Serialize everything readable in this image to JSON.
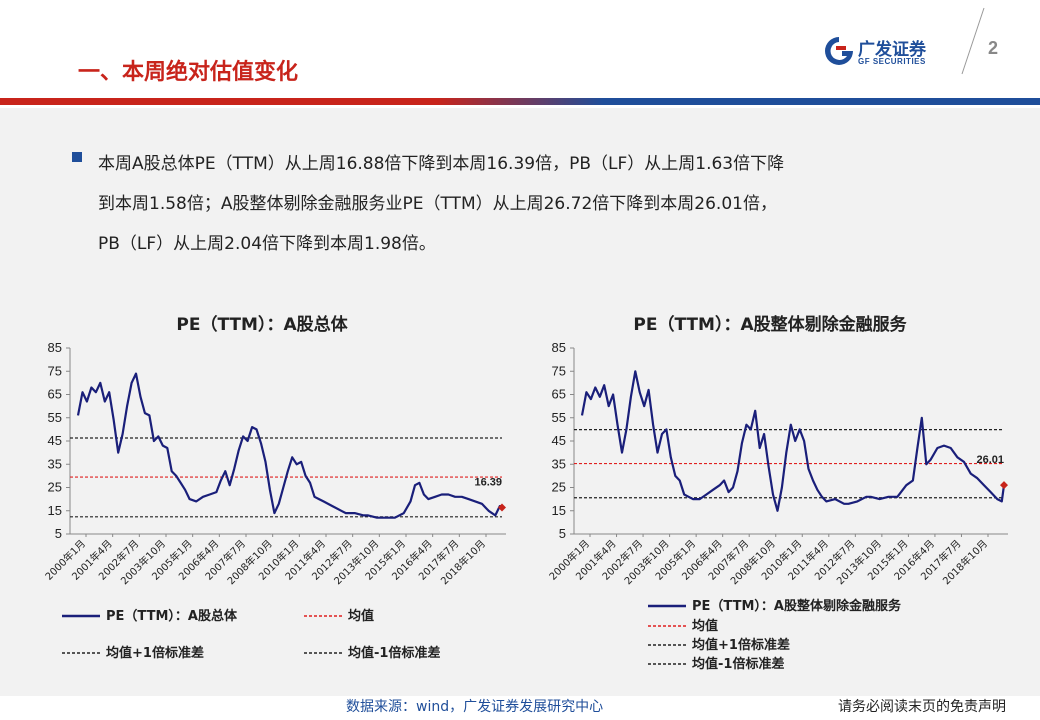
{
  "header": {
    "title": "一、本周绝对估值变化",
    "logo_cn": "广发证券",
    "logo_en": "GF SECURITIES",
    "page_number": "2",
    "brand_red": "#c8241b",
    "brand_blue": "#1f4e9a"
  },
  "summary": {
    "lines": [
      "本周A股总体PE（TTM）从上周16.88倍下降到本周16.39倍，PB（LF）从上周1.63倍下降",
      "到本周1.58倍；A股整体剔除金融服务业PE（TTM）从上周26.72倍下降到本周26.01倍，",
      "PB（LF）从上周2.04倍下降到本周1.98倍。"
    ]
  },
  "footer": {
    "source": "数据来源：wind，广发证券发展研究中心",
    "disclaimer": "请务必阅读末页的免责声明"
  },
  "chart_data": [
    {
      "type": "line",
      "title": "PE（TTM）：A股总体",
      "ylim": [
        5,
        85
      ],
      "yticks": [
        5,
        15,
        25,
        35,
        45,
        55,
        65,
        75,
        85
      ],
      "xlim": [
        2000.0,
        2019.0
      ],
      "xtick_labels": [
        "2000年1月",
        "2001年4月",
        "2002年7月",
        "2003年10月",
        "2005年1月",
        "2006年4月",
        "2007年7月",
        "2008年10月",
        "2010年1月",
        "2011年4月",
        "2012年7月",
        "2013年10月",
        "2015年1月",
        "2016年4月",
        "2017年7月",
        "2018年10月"
      ],
      "x_units": "year (decimal)",
      "series": [
        {
          "name": "PE（TTM）：A股总体",
          "color": "#1a1f7a",
          "style": "solid",
          "x": [
            2000.0,
            2000.2,
            2000.4,
            2000.6,
            2000.8,
            2001.0,
            2001.2,
            2001.4,
            2001.6,
            2001.8,
            2002.0,
            2002.2,
            2002.4,
            2002.6,
            2002.8,
            2003.0,
            2003.2,
            2003.4,
            2003.6,
            2003.8,
            2004.0,
            2004.2,
            2004.4,
            2004.6,
            2004.8,
            2005.0,
            2005.3,
            2005.6,
            2005.9,
            2006.2,
            2006.4,
            2006.6,
            2006.8,
            2007.0,
            2007.2,
            2007.4,
            2007.6,
            2007.8,
            2008.0,
            2008.2,
            2008.4,
            2008.6,
            2008.8,
            2009.0,
            2009.2,
            2009.4,
            2009.6,
            2009.8,
            2010.0,
            2010.2,
            2010.4,
            2010.6,
            2010.8,
            2011.0,
            2011.4,
            2011.8,
            2012.0,
            2012.4,
            2012.8,
            2013.0,
            2013.4,
            2013.8,
            2014.2,
            2014.6,
            2014.9,
            2015.1,
            2015.3,
            2015.5,
            2015.7,
            2016.0,
            2016.3,
            2016.6,
            2016.9,
            2017.2,
            2017.5,
            2017.8,
            2018.1,
            2018.4,
            2018.7,
            2018.9,
            2019.0
          ],
          "values": [
            56,
            66,
            62,
            68,
            66,
            70,
            62,
            66,
            54,
            40,
            48,
            60,
            70,
            74,
            64,
            57,
            56,
            45,
            47,
            43,
            42,
            32,
            30,
            27,
            24,
            20,
            19,
            21,
            22,
            23,
            28,
            32,
            26,
            33,
            41,
            47,
            45,
            51,
            50,
            44,
            36,
            24,
            14,
            18,
            25,
            32,
            38,
            35,
            36,
            30,
            27,
            21,
            20,
            19,
            17,
            15,
            14,
            14,
            13,
            13,
            12,
            12,
            12,
            14,
            19,
            26,
            27,
            22,
            20,
            21,
            22,
            22,
            21,
            21,
            20,
            19,
            18,
            15,
            13,
            17,
            17
          ]
        }
      ],
      "reference_lines": [
        {
          "name": "均值",
          "value": 29.5,
          "color": "#e02020",
          "style": "dotted"
        },
        {
          "name": "均值+1倍标准差",
          "value": 46.3,
          "color": "#222222",
          "style": "dotted"
        },
        {
          "name": "均值-1倍标准差",
          "value": 12.4,
          "color": "#222222",
          "style": "dotted"
        }
      ],
      "last_point": {
        "x": 2019.0,
        "value": 16.39,
        "label": "16.39",
        "color": "#c8241b"
      },
      "legend": {
        "placement": "bottom",
        "entries": [
          {
            "label": "PE（TTM）：A股总体",
            "kind": "series"
          },
          {
            "label": "均值",
            "kind": "mean"
          },
          {
            "label": "均值+1倍标准差",
            "kind": "plus"
          },
          {
            "label": "均值-1倍标准差",
            "kind": "minus"
          }
        ]
      }
    },
    {
      "type": "line",
      "title": "PE（TTM）：A股整体剔除金融服务",
      "ylim": [
        5,
        85
      ],
      "yticks": [
        5,
        15,
        25,
        35,
        45,
        55,
        65,
        75,
        85
      ],
      "xlim": [
        2000.0,
        2019.0
      ],
      "xtick_labels": [
        "2000年1月",
        "2001年4月",
        "2002年7月",
        "2003年10月",
        "2005年1月",
        "2006年4月",
        "2007年7月",
        "2008年10月",
        "2010年1月",
        "2011年4月",
        "2012年7月",
        "2013年10月",
        "2015年1月",
        "2016年4月",
        "2017年7月",
        "2018年10月"
      ],
      "x_units": "year (decimal)",
      "series": [
        {
          "name": "PE（TTM）：A股整体剔除金融服务",
          "color": "#1a1f7a",
          "style": "solid",
          "x": [
            2000.0,
            2000.2,
            2000.4,
            2000.6,
            2000.8,
            2001.0,
            2001.2,
            2001.4,
            2001.6,
            2001.8,
            2002.0,
            2002.2,
            2002.4,
            2002.6,
            2002.8,
            2003.0,
            2003.2,
            2003.4,
            2003.6,
            2003.8,
            2004.0,
            2004.2,
            2004.4,
            2004.6,
            2004.8,
            2005.0,
            2005.3,
            2005.6,
            2005.9,
            2006.2,
            2006.4,
            2006.6,
            2006.8,
            2007.0,
            2007.2,
            2007.4,
            2007.6,
            2007.8,
            2008.0,
            2008.2,
            2008.4,
            2008.6,
            2008.8,
            2009.0,
            2009.2,
            2009.4,
            2009.6,
            2009.8,
            2010.0,
            2010.2,
            2010.4,
            2010.6,
            2010.8,
            2011.0,
            2011.4,
            2011.8,
            2012.0,
            2012.4,
            2012.8,
            2013.0,
            2013.4,
            2013.8,
            2014.2,
            2014.6,
            2014.9,
            2015.1,
            2015.3,
            2015.5,
            2015.7,
            2016.0,
            2016.3,
            2016.6,
            2016.9,
            2017.2,
            2017.5,
            2017.8,
            2018.1,
            2018.4,
            2018.7,
            2018.9,
            2019.0
          ],
          "values": [
            56,
            66,
            63,
            68,
            64,
            69,
            60,
            65,
            52,
            40,
            50,
            64,
            75,
            66,
            60,
            67,
            52,
            40,
            48,
            50,
            38,
            30,
            28,
            22,
            21,
            20,
            20,
            22,
            24,
            26,
            28,
            23,
            25,
            32,
            44,
            52,
            50,
            58,
            42,
            48,
            34,
            22,
            15,
            25,
            40,
            52,
            45,
            50,
            45,
            33,
            28,
            24,
            21,
            19,
            20,
            18,
            18,
            19,
            21,
            21,
            20,
            21,
            21,
            26,
            28,
            42,
            55,
            35,
            37,
            42,
            43,
            42,
            38,
            36,
            31,
            29,
            26,
            23,
            20,
            19,
            26
          ]
        }
      ],
      "reference_lines": [
        {
          "name": "均值",
          "value": 35.3,
          "color": "#e02020",
          "style": "dotted"
        },
        {
          "name": "均值+1倍标准差",
          "value": 49.9,
          "color": "#222222",
          "style": "dotted"
        },
        {
          "name": "均值-1倍标准差",
          "value": 20.6,
          "color": "#222222",
          "style": "dotted"
        }
      ],
      "last_point": {
        "x": 2019.0,
        "value": 26.01,
        "label": "26.01",
        "color": "#c8241b"
      },
      "legend": {
        "placement": "bottom",
        "entries": [
          {
            "label": "PE（TTM）：A股整体剔除金融服务",
            "kind": "series"
          },
          {
            "label": "均值",
            "kind": "mean"
          },
          {
            "label": "均值+1倍标准差",
            "kind": "plus"
          },
          {
            "label": "均值-1倍标准差",
            "kind": "minus"
          }
        ]
      }
    }
  ]
}
